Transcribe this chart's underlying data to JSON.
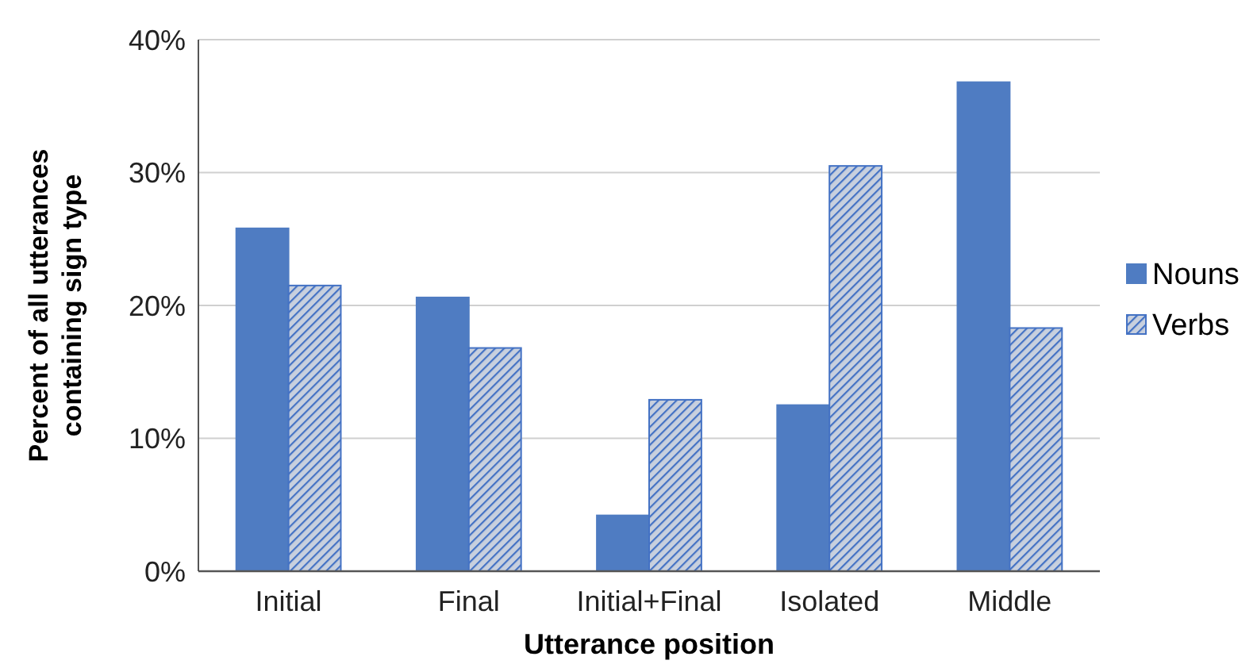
{
  "chart_data": {
    "type": "bar",
    "xlabel": "Utterance position",
    "ylabel": "Percent of all utterances containing sign type",
    "categories": [
      "Initial",
      "Final",
      "Initial+Final",
      "Isolated",
      "Middle"
    ],
    "series": [
      {
        "name": "Nouns",
        "color": "#4f7cc2",
        "values": [
          25.8,
          20.6,
          4.2,
          12.5,
          36.8
        ]
      },
      {
        "name": "Verbs",
        "color": "#4472c4",
        "values": [
          21.5,
          16.8,
          12.9,
          30.5,
          18.3
        ]
      }
    ],
    "ylim": [
      0,
      40
    ],
    "yticks": [
      {
        "value": 0,
        "label": "0%"
      },
      {
        "value": 10,
        "label": "10%"
      },
      {
        "value": 20,
        "label": "20%"
      },
      {
        "value": 30,
        "label": "30%"
      },
      {
        "value": 40,
        "label": "40%"
      }
    ],
    "grid": "y",
    "legend": "right"
  }
}
